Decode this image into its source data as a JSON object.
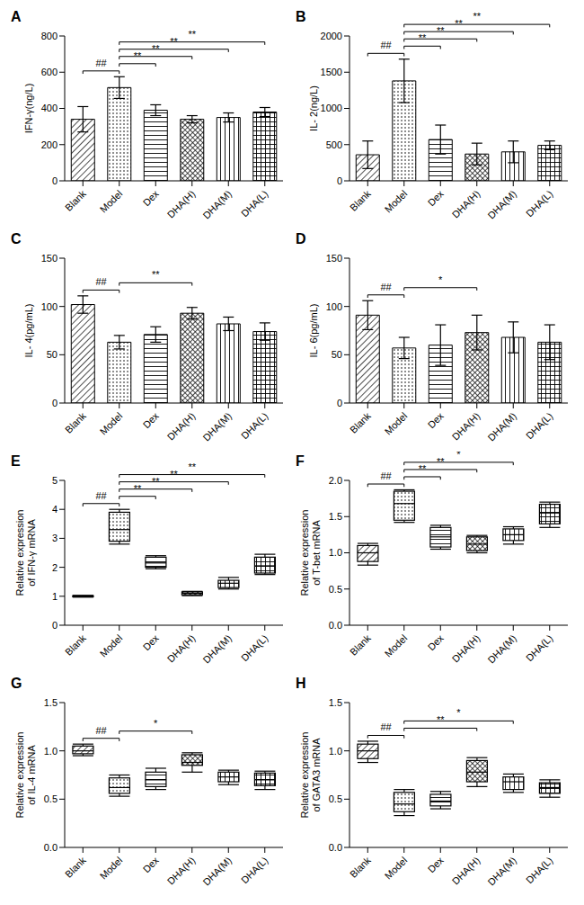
{
  "chart_data": [
    {
      "type": "bar",
      "title": "A",
      "ylabel": [
        "IFN-γ(ng/L)"
      ],
      "color": "#000000",
      "categories": [
        "Blank",
        "Model",
        "Dex",
        "DHA(H)",
        "DHA(M)",
        "DHA(L)"
      ],
      "values": [
        340,
        515,
        390,
        340,
        350,
        380
      ],
      "errors": [
        70,
        60,
        30,
        20,
        25,
        25
      ],
      "ylim": [
        0,
        800
      ],
      "yticks": [
        0,
        200,
        400,
        600,
        800
      ],
      "annotations": [
        {
          "text": "##",
          "from": "Blank",
          "to": "Model"
        },
        {
          "text": "**",
          "from": "Model",
          "to": "Dex"
        },
        {
          "text": "**",
          "from": "Model",
          "to": "DHA(H)"
        },
        {
          "text": "**",
          "from": "Model",
          "to": "DHA(M)"
        },
        {
          "text": "**",
          "from": "Model",
          "to": "DHA(L)"
        }
      ]
    },
    {
      "type": "bar",
      "title": "B",
      "ylabel": [
        "IL- 2(ng/L)"
      ],
      "color": "#000000",
      "categories": [
        "Blank",
        "Model",
        "Dex",
        "DHA(H)",
        "DHA(M)",
        "DHA(L)"
      ],
      "values": [
        360,
        1380,
        570,
        370,
        400,
        490
      ],
      "errors": [
        190,
        300,
        200,
        150,
        150,
        60
      ],
      "ylim": [
        0,
        2000
      ],
      "yticks": [
        0,
        500,
        1000,
        1500,
        2000
      ],
      "annotations": [
        {
          "text": "##",
          "from": "Blank",
          "to": "Model"
        },
        {
          "text": "**",
          "from": "Model",
          "to": "Dex"
        },
        {
          "text": "**",
          "from": "Model",
          "to": "DHA(H)"
        },
        {
          "text": "**",
          "from": "Model",
          "to": "DHA(M)"
        },
        {
          "text": "**",
          "from": "Model",
          "to": "DHA(L)"
        }
      ]
    },
    {
      "type": "bar",
      "title": "C",
      "ylabel": [
        "IL- 4(pg/mL)"
      ],
      "color": "#000000",
      "categories": [
        "Blank",
        "Model",
        "Dex",
        "DHA(H)",
        "DHA(M)",
        "DHA(L)"
      ],
      "values": [
        102,
        63,
        71,
        93,
        82,
        74
      ],
      "errors": [
        9,
        7,
        8,
        6,
        7,
        9
      ],
      "ylim": [
        0,
        150
      ],
      "yticks": [
        0,
        50,
        100,
        150
      ],
      "annotations": [
        {
          "text": "##",
          "from": "Blank",
          "to": "Model"
        },
        {
          "text": "**",
          "from": "Model",
          "to": "DHA(H)"
        }
      ]
    },
    {
      "type": "bar",
      "title": "D",
      "ylabel": [
        "IL- 6(pg/mL)"
      ],
      "color": "#000000",
      "categories": [
        "Blank",
        "Model",
        "Dex",
        "DHA(H)",
        "DHA(M)",
        "DHA(L)"
      ],
      "values": [
        91,
        57,
        60,
        73,
        68,
        63
      ],
      "errors": [
        15,
        11,
        21,
        18,
        16,
        18
      ],
      "ylim": [
        0,
        150
      ],
      "yticks": [
        0,
        50,
        100,
        150
      ],
      "annotations": [
        {
          "text": "##",
          "from": "Blank",
          "to": "Model"
        },
        {
          "text": "*",
          "from": "Model",
          "to": "DHA(H)"
        }
      ]
    },
    {
      "type": "box",
      "title": "E",
      "ylabel": [
        "Relative expression",
        "of IFN-γ mRNA"
      ],
      "color": "#000000",
      "categories": [
        "Blank",
        "Model",
        "Dex",
        "DHA(H)",
        "DHA(M)",
        "DHA(L)"
      ],
      "min": [
        0.97,
        2.8,
        1.95,
        1.02,
        1.25,
        1.75
      ],
      "q1": [
        0.98,
        2.9,
        2.0,
        1.05,
        1.3,
        1.8
      ],
      "median": [
        1.0,
        3.3,
        2.15,
        1.1,
        1.45,
        2.05
      ],
      "q3": [
        1.02,
        3.9,
        2.35,
        1.15,
        1.55,
        2.35
      ],
      "max": [
        1.03,
        4.0,
        2.4,
        1.17,
        1.65,
        2.45
      ],
      "ylim": [
        0,
        5
      ],
      "yticks": [
        0,
        1,
        2,
        3,
        4,
        5
      ],
      "annotations": [
        {
          "text": "##",
          "from": "Blank",
          "to": "Model"
        },
        {
          "text": "**",
          "from": "Model",
          "to": "Dex"
        },
        {
          "text": "**",
          "from": "Model",
          "to": "DHA(H)"
        },
        {
          "text": "**",
          "from": "Model",
          "to": "DHA(M)"
        },
        {
          "text": "**",
          "from": "Model",
          "to": "DHA(L)"
        }
      ]
    },
    {
      "type": "box",
      "title": "F",
      "ylabel": [
        "Relative expression",
        "of T-bet mRNA"
      ],
      "color": "#000000",
      "categories": [
        "Blank",
        "Model",
        "Dex",
        "DHA(H)",
        "DHA(M)",
        "DHA(L)"
      ],
      "min": [
        0.83,
        1.42,
        1.05,
        1.0,
        1.12,
        1.35
      ],
      "q1": [
        0.88,
        1.45,
        1.08,
        1.03,
        1.17,
        1.4
      ],
      "median": [
        1.0,
        1.68,
        1.22,
        1.12,
        1.25,
        1.55
      ],
      "q3": [
        1.1,
        1.85,
        1.35,
        1.22,
        1.33,
        1.67
      ],
      "max": [
        1.13,
        1.87,
        1.38,
        1.24,
        1.36,
        1.7
      ],
      "ylim": [
        0,
        2
      ],
      "yticks": [
        {
          "value": 0,
          "label": "0.0"
        },
        0.5,
        {
          "value": 1,
          "label": "1.0"
        },
        1.5,
        {
          "value": 2,
          "label": "2.0"
        }
      ],
      "annotations": [
        {
          "text": "##",
          "from": "Blank",
          "to": "Model"
        },
        {
          "text": "**",
          "from": "Model",
          "to": "Dex"
        },
        {
          "text": "**",
          "from": "Model",
          "to": "DHA(H)"
        },
        {
          "text": "*",
          "from": "Model",
          "to": "DHA(M)"
        }
      ]
    },
    {
      "type": "box",
      "title": "G",
      "ylabel": [
        "Relative expression",
        "of IL-4 mRNA"
      ],
      "color": "#000000",
      "categories": [
        "Blank",
        "Model",
        "Dex",
        "DHA(H)",
        "DHA(M)",
        "DHA(L)"
      ],
      "min": [
        0.95,
        0.53,
        0.6,
        0.78,
        0.65,
        0.6
      ],
      "q1": [
        0.97,
        0.56,
        0.63,
        0.85,
        0.68,
        0.64
      ],
      "median": [
        1.0,
        0.62,
        0.7,
        0.88,
        0.73,
        0.7
      ],
      "q3": [
        1.05,
        0.72,
        0.78,
        0.96,
        0.78,
        0.77
      ],
      "max": [
        1.07,
        0.75,
        0.82,
        0.98,
        0.8,
        0.79
      ],
      "ylim": [
        0,
        1.5
      ],
      "yticks": [
        {
          "value": 0,
          "label": "0.0"
        },
        0.5,
        {
          "value": 1,
          "label": "1.0"
        },
        1.5
      ],
      "annotations": [
        {
          "text": "##",
          "from": "Blank",
          "to": "Model"
        },
        {
          "text": "*",
          "from": "Model",
          "to": "DHA(H)"
        }
      ]
    },
    {
      "type": "box",
      "title": "H",
      "ylabel": [
        "Relative expression",
        "of GATA3 mRNA"
      ],
      "color": "#000000",
      "categories": [
        "Blank",
        "Model",
        "Dex",
        "DHA(H)",
        "DHA(M)",
        "DHA(L)"
      ],
      "min": [
        0.88,
        0.33,
        0.4,
        0.63,
        0.57,
        0.52
      ],
      "q1": [
        0.92,
        0.37,
        0.43,
        0.68,
        0.6,
        0.56
      ],
      "median": [
        1.0,
        0.45,
        0.48,
        0.78,
        0.68,
        0.62
      ],
      "q3": [
        1.07,
        0.57,
        0.55,
        0.9,
        0.73,
        0.67
      ],
      "max": [
        1.1,
        0.6,
        0.58,
        0.93,
        0.76,
        0.7
      ],
      "ylim": [
        0,
        1.5
      ],
      "yticks": [
        {
          "value": 0,
          "label": "0.0"
        },
        0.5,
        {
          "value": 1,
          "label": "1.0"
        },
        1.5
      ],
      "annotations": [
        {
          "text": "##",
          "from": "Blank",
          "to": "Model"
        },
        {
          "text": "**",
          "from": "Model",
          "to": "DHA(H)"
        },
        {
          "text": "*",
          "from": "Model",
          "to": "DHA(M)"
        }
      ]
    }
  ]
}
